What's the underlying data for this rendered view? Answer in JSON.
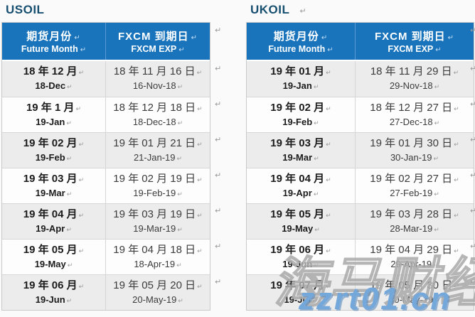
{
  "colors": {
    "title": "#174f70",
    "header_bg": "#1a74bc",
    "header_text": "#ffffff",
    "row_shade": "#ececec",
    "row_plain": "#fdfdfd",
    "watermark_blue": "#74a7da"
  },
  "marks": {
    "line_break": "↵"
  },
  "tables": [
    {
      "title": "USOIL",
      "headers": [
        {
          "zh": "期货月份",
          "en": "Future Month"
        },
        {
          "zh": "FXCM 到期日",
          "en": "FXCM EXP"
        }
      ],
      "rows": [
        {
          "month_zh": "18 年 12 月",
          "month_en": "18-Dec",
          "exp_zh": "18 年 11 月 16 日",
          "exp_en": "16-Nov-18"
        },
        {
          "month_zh": "19 年 1 月",
          "month_en": "19-Jan",
          "exp_zh": "18 年 12 月 18 日",
          "exp_en": "18-Dec-18"
        },
        {
          "month_zh": "19 年 02 月",
          "month_en": "19-Feb",
          "exp_zh": "19 年 01 月 21 日",
          "exp_en": "21-Jan-19"
        },
        {
          "month_zh": "19 年 03 月",
          "month_en": "19-Mar",
          "exp_zh": "19 年 02 月 19 日",
          "exp_en": "19-Feb-19"
        },
        {
          "month_zh": "19 年 04 月",
          "month_en": "19-Apr",
          "exp_zh": "19 年 03 月 19 日",
          "exp_en": "19-Mar-19"
        },
        {
          "month_zh": "19 年 05 月",
          "month_en": "19-May",
          "exp_zh": "19 年 04 月 18 日",
          "exp_en": "18-Apr-19"
        },
        {
          "month_zh": "19 年 06 月",
          "month_en": "19-Jun",
          "exp_zh": "19 年 05 月 20 日",
          "exp_en": "20-May-19"
        }
      ]
    },
    {
      "title": "UKOIL",
      "headers": [
        {
          "zh": "期货月份",
          "en": "Future Month"
        },
        {
          "zh": "FXCM 到期日",
          "en": "FXCM EXP"
        }
      ],
      "rows": [
        {
          "month_zh": "19 年 01 月",
          "month_en": "19-Jan",
          "exp_zh": "18 年 11 月 29 日",
          "exp_en": "29-Nov-18"
        },
        {
          "month_zh": "19 年 02 月",
          "month_en": "19-Feb",
          "exp_zh": "18 年 12 月 27 日",
          "exp_en": "27-Dec-18"
        },
        {
          "month_zh": "19 年 03 月",
          "month_en": "19-Mar",
          "exp_zh": "19 年 01 月 30 日",
          "exp_en": "30-Jan-19"
        },
        {
          "month_zh": "19 年 04 月",
          "month_en": "19-Apr",
          "exp_zh": "19 年 02 月 27 日",
          "exp_en": "27-Feb-19"
        },
        {
          "month_zh": "19 年 05 月",
          "month_en": "19-May",
          "exp_zh": "19 年 03 月 28 日",
          "exp_en": "28-Mar-19"
        },
        {
          "month_zh": "19 年 06 月",
          "month_en": "19-Jun",
          "exp_zh": "19 年 04 月 29 日",
          "exp_en": "29-Apr-19"
        },
        {
          "month_zh": "19 年 07 月",
          "month_en": "19-Jul",
          "exp_zh": "19 年 05 月 30 日",
          "exp_en": "30-May-19"
        }
      ]
    }
  ],
  "watermark": {
    "text_cn": "海马财经",
    "text_url": "zzrt01.cn"
  }
}
